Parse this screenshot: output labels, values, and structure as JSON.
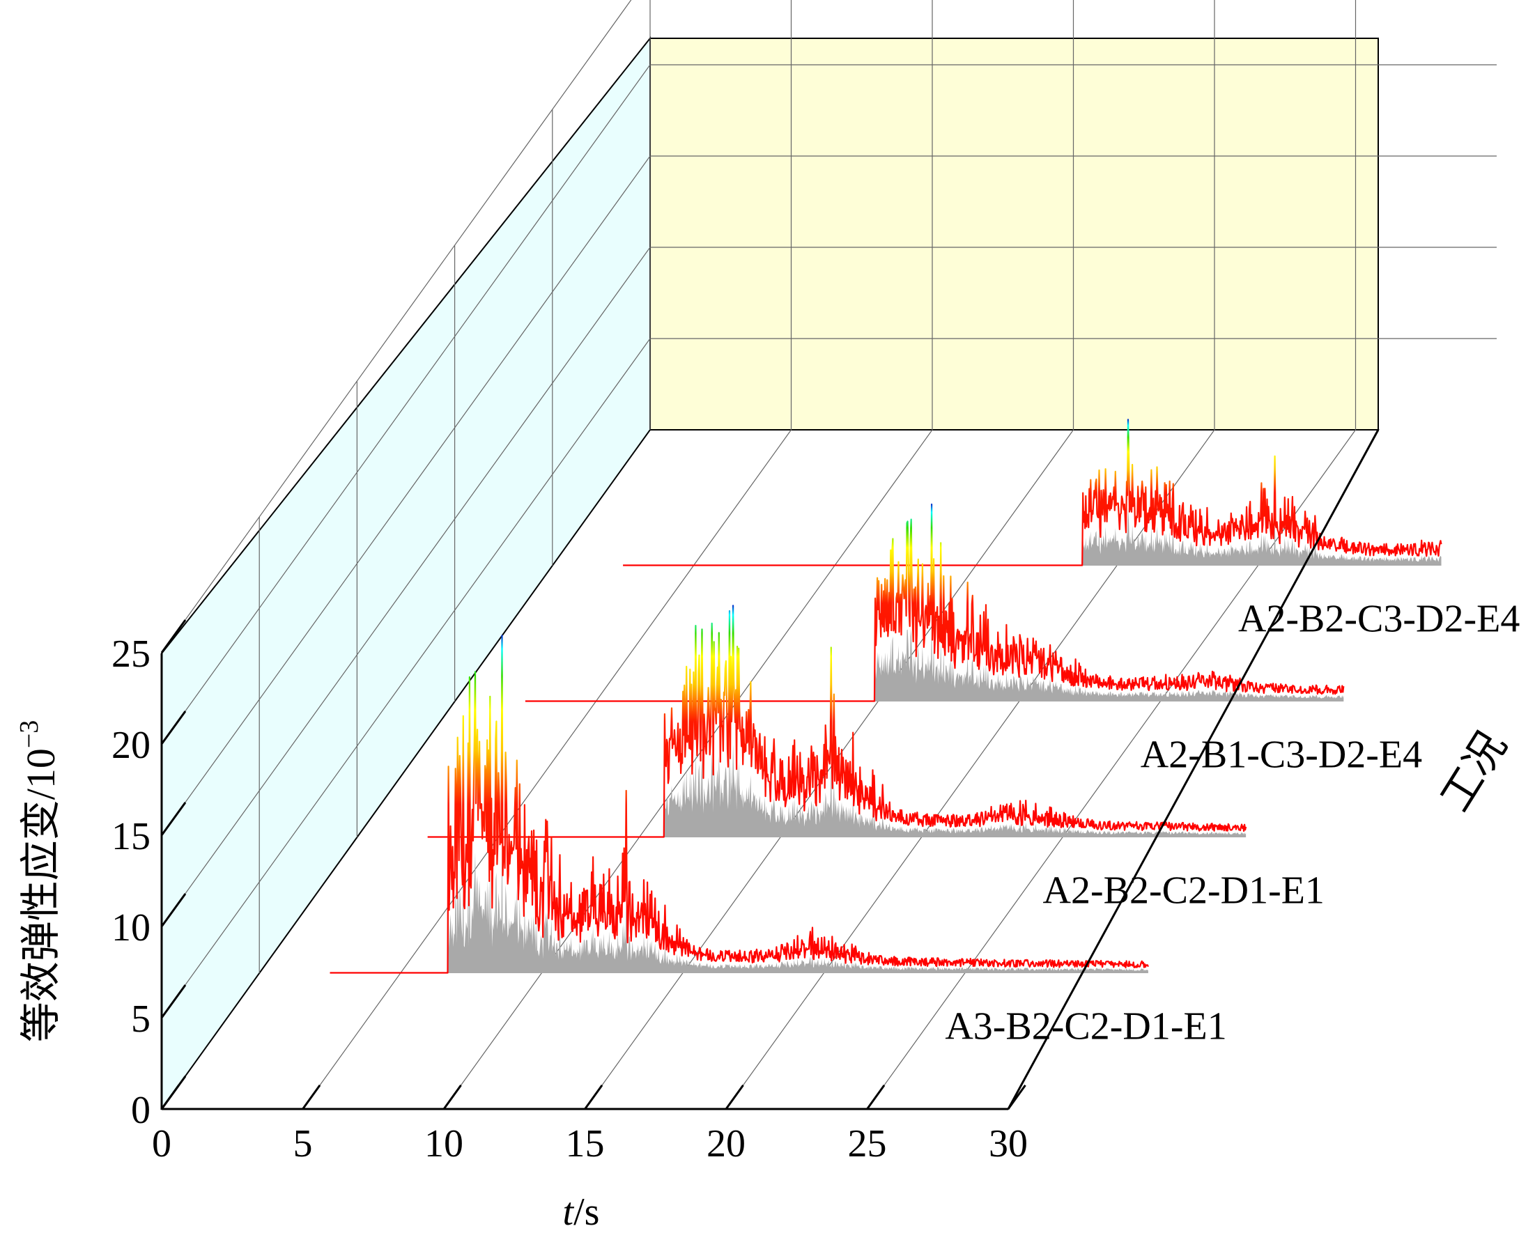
{
  "chart_data": {
    "type": "waterfall-3d-line",
    "xlabel_italic": "t",
    "xlabel_unit": "/s",
    "ylabel": "等效弹性应变/10",
    "ylabel_exponent": "−3",
    "zlabel": "工况",
    "xlim": [
      0,
      30
    ],
    "ylim": [
      0,
      25
    ],
    "x_ticks": [
      "0",
      "5",
      "10",
      "15",
      "20",
      "25",
      "30"
    ],
    "y_ticks": [
      "0",
      "5",
      "10",
      "15",
      "20",
      "25"
    ],
    "series": [
      {
        "name": "A3-B2-C2-D1-E1",
        "onset": 6.7,
        "peaks": [
          {
            "t": 8.6,
            "v": 18.5
          },
          {
            "t": 7.4,
            "v": 12.6
          },
          {
            "t": 13.0,
            "v": 10.0
          },
          {
            "t": 19.6,
            "v": 2.5
          }
        ]
      },
      {
        "name": "A2-B2-C2-D1-E1",
        "onset": 10.9,
        "peaks": [
          {
            "t": 12.0,
            "v": 11.6
          },
          {
            "t": 13.2,
            "v": 12.4
          },
          {
            "t": 16.8,
            "v": 10.4
          },
          {
            "t": 23.5,
            "v": 2.0
          }
        ]
      },
      {
        "name": "A2-B1-C3-D2-E4",
        "onset": 14.9,
        "peaks": [
          {
            "t": 16.9,
            "v": 10.8
          },
          {
            "t": 15.5,
            "v": 8.3
          },
          {
            "t": 20.6,
            "v": 3.3
          },
          {
            "t": 26.5,
            "v": 1.3
          }
        ]
      },
      {
        "name": "A2-B2-C3-D2-E4",
        "onset": 18.8,
        "peaks": [
          {
            "t": 20.4,
            "v": 8.0
          },
          {
            "t": 25.6,
            "v": 6.0
          },
          {
            "t": 31.3,
            "v": 0.6
          }
        ]
      }
    ],
    "colors": {
      "line": "#ff0000",
      "fill": "#a9a9a9",
      "side_wall": "#e9fefe",
      "back_wall": "#fefed7",
      "grid": "#666666"
    }
  }
}
